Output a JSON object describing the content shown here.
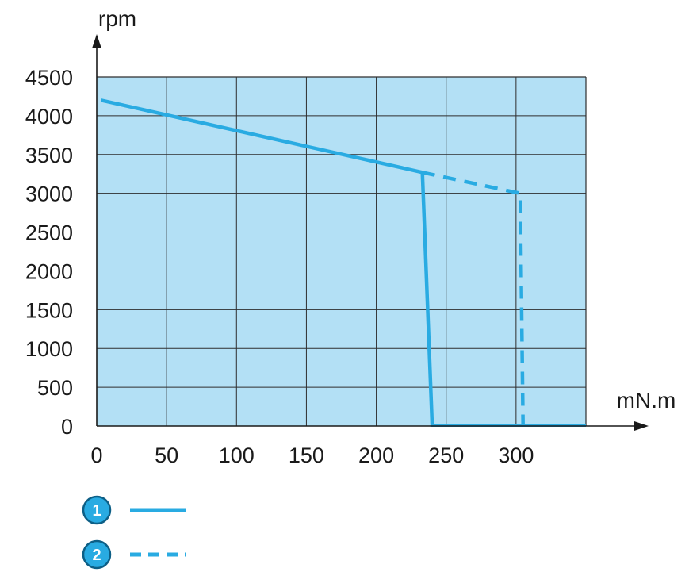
{
  "chart_data": {
    "type": "line",
    "xlabel": "mN.m",
    "ylabel": "rpm",
    "xlim": [
      0,
      350
    ],
    "ylim": [
      0,
      4500
    ],
    "x_ticks": [
      "0",
      "50",
      "100",
      "150",
      "200",
      "250",
      "300"
    ],
    "y_ticks": [
      "0",
      "500",
      "1000",
      "1500",
      "2000",
      "2500",
      "3000",
      "3500",
      "4000",
      "4500"
    ],
    "grid": true,
    "legend_position": "bottom-left",
    "series": [
      {
        "name": "1",
        "style": "solid",
        "color": "#29abe2",
        "points": [
          [
            3,
            4200
          ],
          [
            233,
            3270
          ],
          [
            240,
            0
          ],
          [
            350,
            0
          ]
        ]
      },
      {
        "name": "2",
        "style": "dashed",
        "color": "#29abe2",
        "points": [
          [
            233,
            3270
          ],
          [
            303,
            3000
          ],
          [
            305,
            0
          ]
        ]
      }
    ]
  },
  "colors": {
    "plot_background": "#b3e0f5",
    "grid": "#2e2e2e",
    "axis": "#1a1a1a",
    "series": "#29abe2"
  }
}
